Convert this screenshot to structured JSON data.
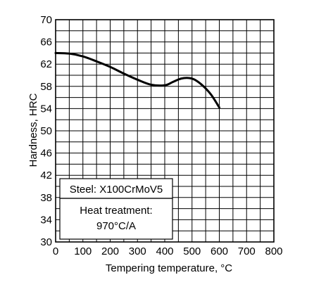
{
  "chart_data": {
    "type": "line",
    "title": "",
    "xlabel": "Tempering temperature, °C",
    "ylabel": "Hardness, HRC",
    "xlim": [
      0,
      800
    ],
    "ylim": [
      30,
      70
    ],
    "x_ticks": [
      "0",
      "100",
      "200",
      "300",
      "400",
      "500",
      "600",
      "700",
      "800"
    ],
    "y_ticks": [
      "30",
      "34",
      "38",
      "42",
      "46",
      "50",
      "54",
      "58",
      "62",
      "66",
      "70"
    ],
    "grid": true,
    "grid_step_x": 50,
    "grid_step_y": 2,
    "series": [
      {
        "color": "#000000",
        "x": [
          0,
          50,
          100,
          150,
          200,
          250,
          300,
          350,
          400,
          430,
          460,
          490,
          510,
          540,
          570,
          600
        ],
        "y": [
          64,
          63.9,
          63.4,
          62.5,
          61.5,
          60.3,
          59.2,
          58.3,
          58.2,
          58.8,
          59.4,
          59.5,
          59.2,
          58.1,
          56.5,
          54.2
        ]
      }
    ],
    "annotations": {
      "steel": "Steel: X100CrMoV5",
      "heat_treatment_line1": "Heat treatment:",
      "heat_treatment_line2": "970°C/A"
    }
  }
}
